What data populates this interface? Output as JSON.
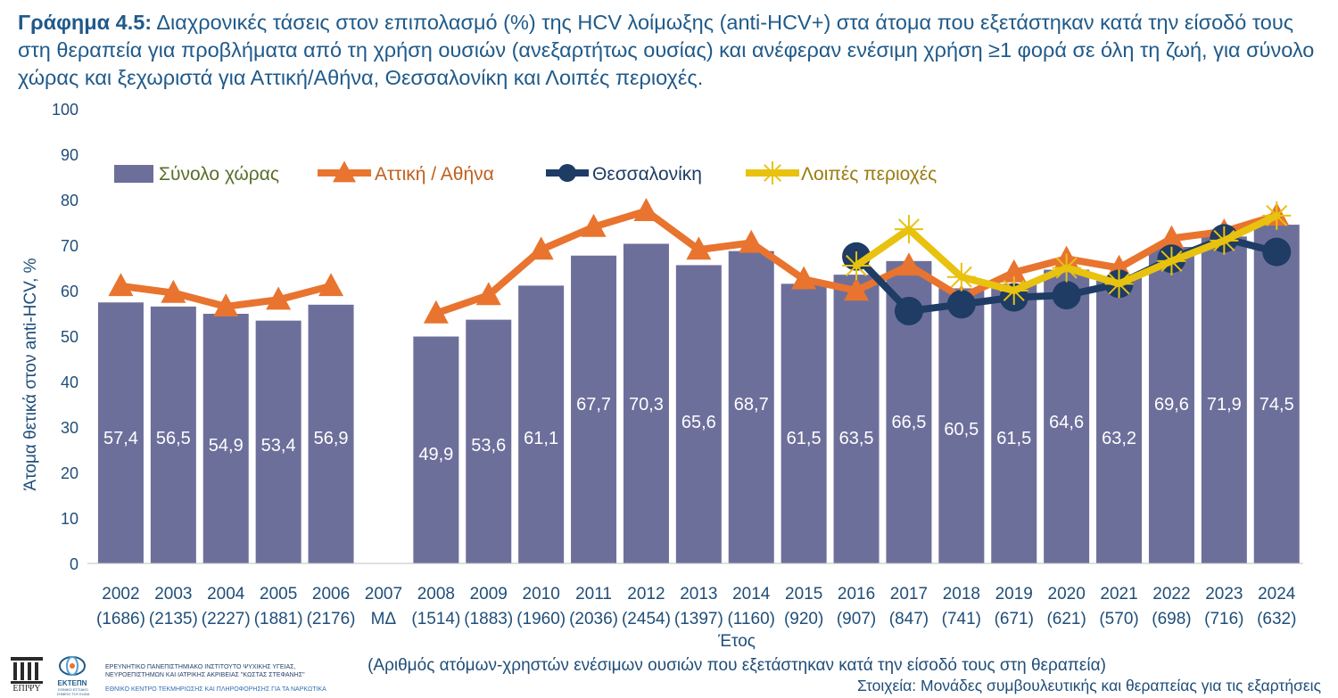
{
  "title": {
    "label": "Γράφημα 4.5:",
    "text": "Διαχρονικές τάσεις στον επιπολασμό (%) της HCV λοίμωξης (anti-HCV+) στα άτομα που εξετάστηκαν κατά την είσοδό τους στη θεραπεία για προβλήματα από τη χρήση ουσιών (ανεξαρτήτως ουσίας) και ανέφεραν ενέσιμη χρήση ≥1 φορά σε όλη τη ζωή, για σύνολο χώρας και ξεχωριστά για Αττική/Αθήνα, Θεσσαλονίκη και Λοιπές περιοχές."
  },
  "footer": {
    "logo1_text": "ΕΠΙΨΥ",
    "logo2_text": "ΕΚΤΕΠΝ",
    "logo2_sub": "ΕΘΝΙΚΟ ΕΣΤΙΑΚΟ ΣΗΜΕΙΟ ΤΟΥ EUDA",
    "institute_line1": "ΕΡΕΥΝΗΤΙΚΟ ΠΑΝΕΠΙΣΤΗΜΙΑΚΟ ΙΝΣΤΙΤΟΥΤΟ ΨΥΧΙΚΗΣ ΥΓΕΙΑΣ,",
    "institute_line2": "ΝΕΥΡΟΕΠΙΣΤΗΜΩΝ ΚΑΙ ΙΑΤΡΙΚΗΣ ΑΚΡΙΒΕΙΑΣ \"ΚΩΣΤΑΣ ΣΤΕΦΑΝΗΣ\"",
    "centre": "ΕΘΝΙΚΟ ΚΕΝΤΡΟ ΤΕΚΜΗΡΙΩΣΗΣ ΚΑΙ ΠΛΗΡΟΦΟΡΗΣΗΣ ΓΙΑ ΤΑ ΝΑΡΚΩΤΙΚΑ",
    "source": "Στοιχεία: Μονάδες συμβουλευτικής και θεραπείας για τις εξαρτήσεις"
  },
  "colors": {
    "bar": "#6d6f9b",
    "attiki": "#e8742f",
    "thessaloniki": "#1e3c64",
    "loipes": "#e8c20e",
    "axis_text": "#1f4e79",
    "legend_bar_text": "#5a6e2a",
    "legend_attiki_text": "#c0601f",
    "legend_loipes_text": "#9a7b10"
  },
  "chart_data": {
    "type": "bar",
    "categories": [
      "2002",
      "2003",
      "2004",
      "2005",
      "2006",
      "2007",
      "2008",
      "2009",
      "2010",
      "2011",
      "2012",
      "2013",
      "2014",
      "2015",
      "2016",
      "2017",
      "2018",
      "2019",
      "2020",
      "2021",
      "2022",
      "2023",
      "2024"
    ],
    "category_notes": [
      "(1686)",
      "(2135)",
      "(2227)",
      "(1881)",
      "(2176)",
      "ΜΔ",
      "(1514)",
      "(1883)",
      "(1960)",
      "(2036)",
      "(2454)",
      "(1397)",
      "(1160)",
      "(920)",
      "(907)",
      "(847)",
      "(741)",
      "(671)",
      "(621)",
      "(570)",
      "(698)",
      "(716)",
      "(632)"
    ],
    "series": [
      {
        "name": "Σύνολο χώρας",
        "kind": "bar",
        "values": [
          57.4,
          56.5,
          54.9,
          53.4,
          56.9,
          null,
          49.9,
          53.6,
          61.1,
          67.7,
          70.3,
          65.6,
          68.7,
          61.5,
          63.5,
          66.5,
          60.5,
          61.5,
          64.6,
          63.2,
          69.6,
          71.9,
          74.5
        ],
        "labels": [
          "57,4",
          "56,5",
          "54,9",
          "53,4",
          "56,9",
          "",
          "49,9",
          "53,6",
          "61,1",
          "67,7",
          "70,3",
          "65,6",
          "68,7",
          "61,5",
          "63,5",
          "66,5",
          "60,5",
          "61,5",
          "64,6",
          "63,2",
          "69,6",
          "71,9",
          "74,5"
        ]
      },
      {
        "name": "Αττική / Αθήνα",
        "kind": "line",
        "marker": "triangle",
        "values": [
          61,
          59.5,
          56.5,
          58,
          61,
          null,
          55,
          59,
          69,
          74,
          77.5,
          69,
          70.5,
          62.5,
          60,
          65.5,
          58.5,
          64,
          67,
          65,
          71.5,
          73,
          76.5
        ]
      },
      {
        "name": "Θεσσαλονίκη",
        "kind": "line",
        "marker": "circle",
        "values": [
          null,
          null,
          null,
          null,
          null,
          null,
          null,
          null,
          null,
          null,
          null,
          null,
          null,
          null,
          67.5,
          55.5,
          57,
          58.5,
          59,
          61.5,
          67,
          71.5,
          68.5
        ]
      },
      {
        "name": "Λοιπές περιοχές",
        "kind": "line",
        "marker": "star",
        "values": [
          null,
          null,
          null,
          null,
          null,
          null,
          null,
          null,
          null,
          null,
          null,
          null,
          null,
          null,
          65.5,
          73.5,
          63,
          60,
          65,
          61.5,
          66.5,
          71,
          76.5
        ]
      }
    ],
    "y_ticks": [
      "0",
      "10",
      "20",
      "30",
      "40",
      "50",
      "60",
      "70",
      "80",
      "90",
      "100"
    ],
    "ylim": [
      0,
      100
    ],
    "xlabel": "Έτος",
    "xlabel_note": "(Αριθμός ατόμων-χρηστών ενέσιμων ουσιών που εξετάστηκαν κατά την είσοδό τους στη θεραπεία)",
    "ylabel": "Άτομα θετικά στον anti-HCV, %",
    "grid": false,
    "legend_placement": "top"
  }
}
